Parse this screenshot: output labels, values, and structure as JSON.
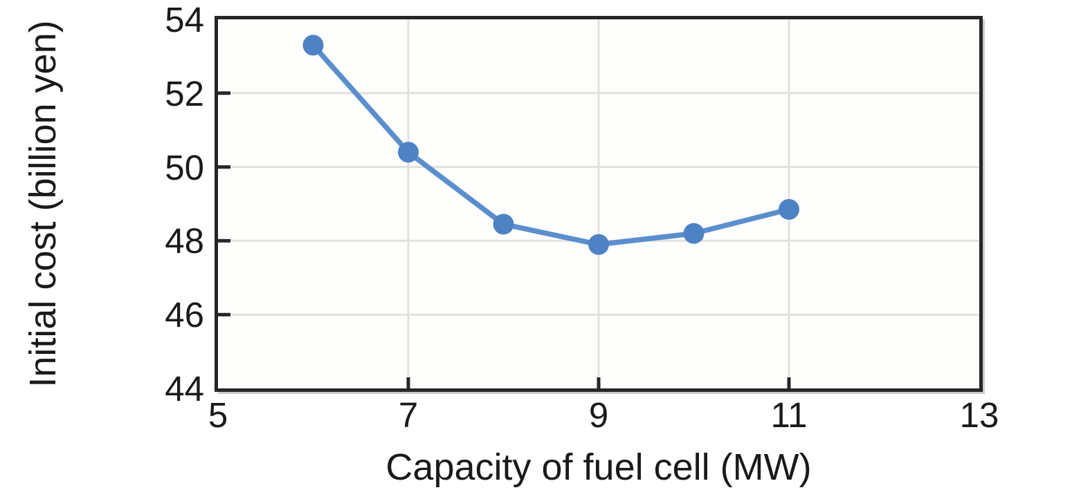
{
  "chart_data": {
    "type": "line",
    "title": "",
    "xlabel": "Capacity of fuel cell (MW)",
    "ylabel": "Initial cost (billion yen)",
    "x": [
      6,
      7,
      8,
      9,
      10,
      11
    ],
    "series": [
      {
        "name": "Initial cost",
        "values": [
          53.3,
          50.4,
          48.45,
          47.9,
          48.2,
          48.85
        ]
      }
    ],
    "xlim": [
      5,
      13
    ],
    "ylim": [
      44,
      54
    ],
    "x_ticks": [
      5,
      7,
      9,
      11,
      13
    ],
    "y_ticks": [
      54,
      52,
      50,
      48,
      46,
      44
    ],
    "x_gridlines": [
      7,
      9,
      11
    ],
    "y_gridlines": [
      52,
      50,
      48,
      46
    ],
    "grid": true,
    "legend": "none",
    "marker": "circle",
    "colors": {
      "line": "#5b8ecd",
      "marker": "#4d82c4",
      "gridline": "#e3e1de",
      "axis": "#262626",
      "text": "#1a1a1a",
      "plot_background": "#fefefd",
      "page_background": "#ffffff"
    }
  }
}
